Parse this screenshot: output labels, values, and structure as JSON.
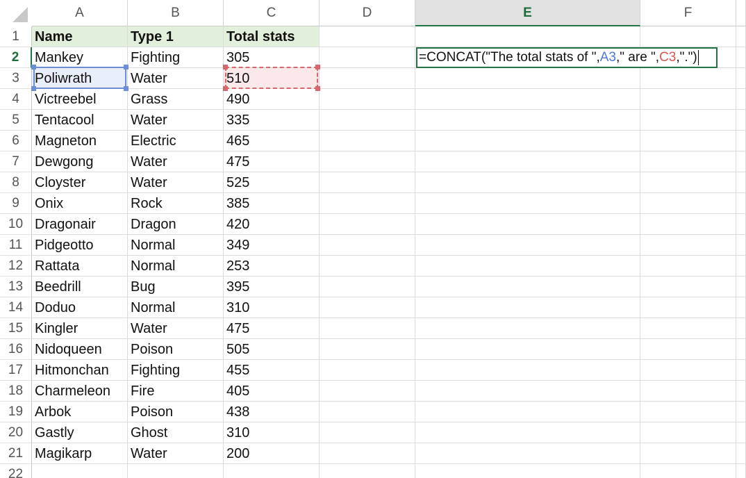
{
  "column_headers": [
    "A",
    "B",
    "C",
    "D",
    "E",
    "F"
  ],
  "row_numbers": [
    1,
    2,
    3,
    4,
    5,
    6,
    7,
    8,
    9,
    10,
    11,
    12,
    13,
    14,
    15,
    16,
    17,
    18,
    19,
    20,
    21,
    22
  ],
  "table": {
    "header": [
      "Name",
      "Type 1",
      "Total stats"
    ],
    "rows": [
      [
        "Mankey",
        "Fighting",
        305
      ],
      [
        "Poliwrath",
        "Water",
        510
      ],
      [
        "Victreebel",
        "Grass",
        490
      ],
      [
        "Tentacool",
        "Water",
        335
      ],
      [
        "Magneton",
        "Electric",
        465
      ],
      [
        "Dewgong",
        "Water",
        475
      ],
      [
        "Cloyster",
        "Water",
        525
      ],
      [
        "Onix",
        "Rock",
        385
      ],
      [
        "Dragonair",
        "Dragon",
        420
      ],
      [
        "Pidgeotto",
        "Normal",
        349
      ],
      [
        "Rattata",
        "Normal",
        253
      ],
      [
        "Beedrill",
        "Bug",
        395
      ],
      [
        "Doduo",
        "Normal",
        310
      ],
      [
        "Kingler",
        "Water",
        475
      ],
      [
        "Nidoqueen",
        "Poison",
        505
      ],
      [
        "Hitmonchan",
        "Fighting",
        455
      ],
      [
        "Charmeleon",
        "Fire",
        405
      ],
      [
        "Arbok",
        "Poison",
        438
      ],
      [
        "Gastly",
        "Ghost",
        310
      ],
      [
        "Magikarp",
        "Water",
        200
      ]
    ]
  },
  "formula": {
    "parts": [
      "=CONCAT(\"The total stats of \",",
      "A3",
      ",\" are \",",
      "C3",
      ",\".\")"
    ]
  }
}
